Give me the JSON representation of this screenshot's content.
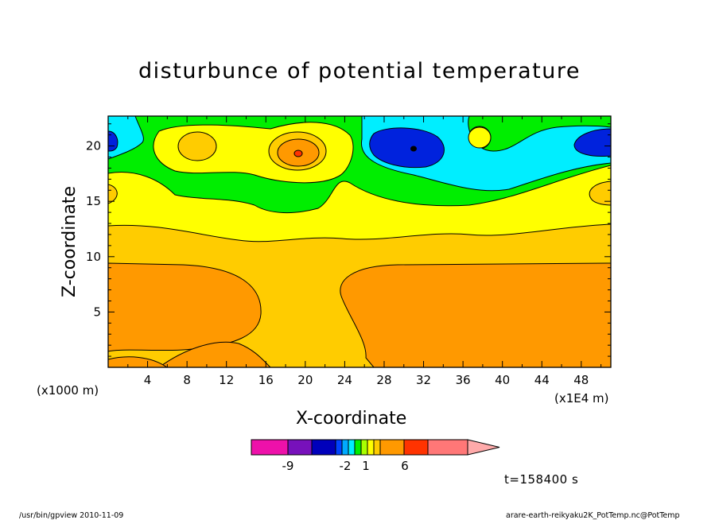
{
  "chart_data": {
    "type": "heatmap",
    "title": "disturbunce of potential temperature",
    "xlabel": "X-coordinate",
    "ylabel": "Z-coordinate",
    "x_unit_left": "(x1000 m)",
    "x_unit_right": "(x1E4 m)",
    "x_ticks": [
      "4",
      "8",
      "12",
      "16",
      "20",
      "24",
      "28",
      "32",
      "36",
      "40",
      "44",
      "48"
    ],
    "y_ticks": [
      "5",
      "10",
      "15",
      "20"
    ],
    "xlim": [
      0,
      51
    ],
    "ylim": [
      0,
      22.7
    ],
    "colorbar_labels": [
      "-9",
      "-2",
      "1",
      "6"
    ],
    "colors": {
      "orange": "#ff9900",
      "light_orange": "#ffcc00",
      "yellow": "#ffff00",
      "green": "#00ee00",
      "cyan": "#00eeff",
      "blue": "#0022dd",
      "colorbar": [
        "#ee11aa",
        "#7711bb",
        "#0000bb",
        "#0044ff",
        "#00aaff",
        "#00eeff",
        "#00ee00",
        "#aaff00",
        "#ffff00",
        "#ffcc00",
        "#ff9900",
        "#ff3300",
        "#ff7777",
        "#ffaaaa"
      ]
    }
  },
  "time_label": "t=158400 s",
  "footer": {
    "left": "/usr/bin/gpview   2010-11-09",
    "right": "arare-earth-reikyaku2K_PotTemp.nc@PotTemp"
  }
}
